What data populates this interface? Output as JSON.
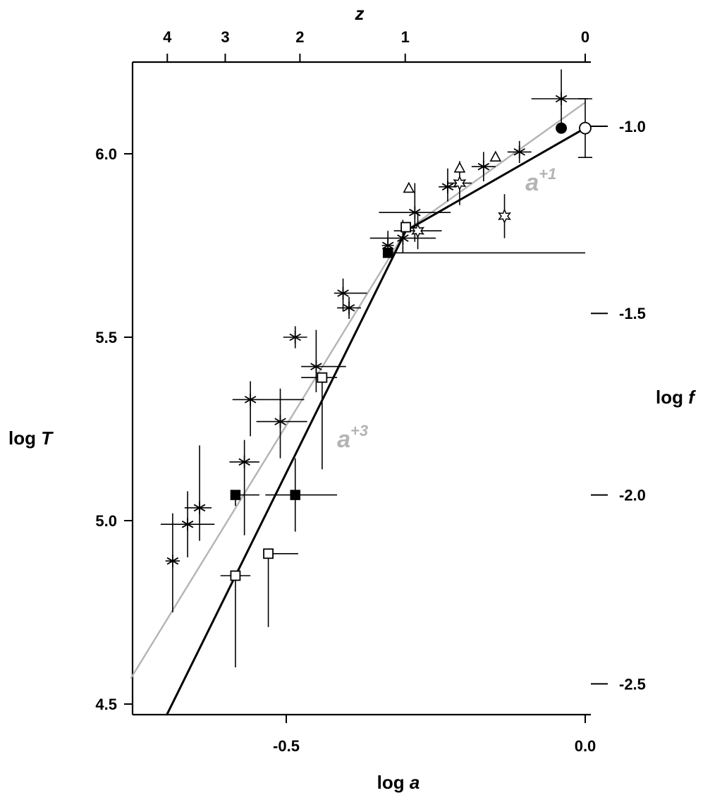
{
  "chart_data": {
    "type": "scatter",
    "axes": {
      "x_bottom": {
        "label_prefix": "log ",
        "label_var": "a",
        "range": [
          -0.78,
          0.0
        ],
        "ticks": [
          {
            "value": -0.5,
            "label": "-0.5"
          },
          {
            "value": 0.0,
            "label": "0.0"
          }
        ]
      },
      "x_top": {
        "label": "z",
        "ticks": [
          {
            "value": 4,
            "label": "4"
          },
          {
            "value": 3,
            "label": "3"
          },
          {
            "value": 2,
            "label": "2"
          },
          {
            "value": 1,
            "label": "1"
          },
          {
            "value": 0,
            "label": "0"
          }
        ]
      },
      "y_left": {
        "label_prefix": "log ",
        "label_var": "T",
        "range": [
          4.47,
          6.26
        ],
        "ticks": [
          {
            "value": 4.5,
            "label": "4.5"
          },
          {
            "value": 5.0,
            "label": "5.0"
          },
          {
            "value": 5.5,
            "label": "5.5"
          },
          {
            "value": 6.0,
            "label": "6.0"
          }
        ]
      },
      "y_right": {
        "label_prefix": "log ",
        "label_var": "f",
        "ticks": [
          {
            "value": -1.0,
            "label": "-1.0",
            "logT": 6.075
          },
          {
            "value": -1.5,
            "label": "-1.5",
            "logT": 5.565
          },
          {
            "value": -2.0,
            "label": "-2.0",
            "logT": 5.07
          },
          {
            "value": -2.5,
            "label": "-2.5",
            "logT": 4.555
          }
        ]
      }
    },
    "fits": [
      {
        "name": "black",
        "color": "#000000",
        "points": [
          [
            -0.7,
            4.47
          ],
          [
            -0.3,
            5.79
          ],
          [
            0.0,
            6.07
          ]
        ]
      },
      {
        "name": "grey",
        "color": "#b4b4b4",
        "points": [
          [
            -0.76,
            4.57
          ],
          [
            -0.3,
            5.79
          ],
          [
            0.0,
            6.14
          ]
        ]
      }
    ],
    "fit_labels": [
      {
        "base": "a",
        "sup": "+1",
        "x": -0.1,
        "y": 5.9,
        "color": "#b4b4b4"
      },
      {
        "base": "a",
        "sup": "+3",
        "x": -0.415,
        "y": 5.2,
        "color": "#b4b4b4"
      }
    ],
    "series": [
      {
        "marker": "asterisk",
        "points": [
          {
            "x": -0.69,
            "y": 4.89,
            "xerr": [
              0.012,
              0.012
            ],
            "yerr": [
              0.14,
              0.13
            ]
          },
          {
            "x": -0.665,
            "y": 4.99,
            "xerr": [
              0.045,
              0.045
            ],
            "yerr": [
              0.09,
              0.09
            ]
          },
          {
            "x": -0.645,
            "y": 5.035,
            "xerr": [
              0.025,
              0.02
            ],
            "yerr": [
              0.09,
              0.17
            ]
          },
          {
            "x": -0.57,
            "y": 5.16,
            "xerr": [
              0.025,
              0.025
            ],
            "yerr": [
              0.2,
              0.06
            ]
          },
          {
            "x": -0.56,
            "y": 5.33,
            "xerr": [
              0.03,
              0.09
            ],
            "yerr": [
              0.1,
              0.05
            ]
          },
          {
            "x": -0.51,
            "y": 5.27,
            "xerr": [
              0.04,
              0.045
            ],
            "yerr": [
              0.1,
              0.09
            ]
          },
          {
            "x": -0.485,
            "y": 5.5,
            "xerr": [
              0.02,
              0.02
            ],
            "yerr": [
              0.03,
              0.03
            ]
          },
          {
            "x": -0.45,
            "y": 5.42,
            "xerr": [
              0.025,
              0.05
            ],
            "yerr": [
              0.07,
              0.1
            ]
          },
          {
            "x": -0.405,
            "y": 5.62,
            "xerr": [
              0.015,
              0.04
            ],
            "yerr": [
              0.05,
              0.04
            ]
          },
          {
            "x": -0.395,
            "y": 5.58,
            "xerr": [
              0.02,
              0.02
            ],
            "yerr": [
              0.03,
              0.03
            ]
          },
          {
            "x": -0.33,
            "y": 5.75,
            "xerr": [
              0.01,
              0.01
            ],
            "yerr": [
              0.02,
              0.04
            ]
          },
          {
            "x": -0.305,
            "y": 5.77,
            "xerr": [
              0.055,
              0.055
            ],
            "yerr": [
              0.04,
              0.05
            ]
          },
          {
            "x": -0.285,
            "y": 5.84,
            "xerr": [
              0.06,
              0.06
            ],
            "yerr": [
              0.08,
              0.08
            ]
          },
          {
            "x": -0.23,
            "y": 5.91,
            "xerr": [
              0.015,
              0.015
            ],
            "yerr": [
              0.04,
              0.05
            ]
          },
          {
            "x": -0.17,
            "y": 5.965,
            "xerr": [
              0.02,
              0.02
            ],
            "yerr": [
              0.04,
              0.04
            ]
          },
          {
            "x": -0.11,
            "y": 6.005,
            "xerr": [
              0.02,
              0.02
            ],
            "yerr": [
              0.03,
              0.03
            ]
          },
          {
            "x": -0.04,
            "y": 6.15,
            "xerr": [
              0.05,
              0.045
            ],
            "yerr": [
              0.08,
              0.08
            ]
          }
        ]
      },
      {
        "marker": "filled-square",
        "points": [
          {
            "x": -0.585,
            "y": 5.07,
            "xerr": [
              0.0,
              0.04
            ],
            "yerr": [
              0.03,
              0.0
            ]
          },
          {
            "x": -0.485,
            "y": 5.07,
            "xerr": [
              0.05,
              0.07
            ],
            "yerr": [
              0.1,
              0.1
            ]
          },
          {
            "x": -0.33,
            "y": 5.73,
            "xerr": [
              0.0,
              0.33
            ],
            "yerr": [
              0.0,
              0.0
            ]
          }
        ]
      },
      {
        "marker": "open-square",
        "points": [
          {
            "x": -0.585,
            "y": 4.85,
            "xerr": [
              0.025,
              0.025
            ],
            "yerr": [
              0.25,
              0.0
            ]
          },
          {
            "x": -0.53,
            "y": 4.91,
            "xerr": [
              0.0,
              0.05
            ],
            "yerr": [
              0.2,
              0.0
            ]
          },
          {
            "x": -0.44,
            "y": 5.39,
            "xerr": [
              0.035,
              0.025
            ],
            "yerr": [
              0.25,
              0.0
            ]
          },
          {
            "x": -0.3,
            "y": 5.8,
            "xerr": [
              0.0,
              0.0
            ],
            "yerr": [
              0.0,
              0.0
            ]
          }
        ]
      },
      {
        "marker": "open-triangle",
        "points": [
          {
            "x": -0.295,
            "y": 5.905,
            "xerr": [
              0.0,
              0.0
            ],
            "yerr": [
              0.01,
              0.01
            ]
          },
          {
            "x": -0.21,
            "y": 5.96,
            "xerr": [
              0.0,
              0.0
            ],
            "yerr": [
              0.01,
              0.01
            ]
          },
          {
            "x": -0.15,
            "y": 5.99,
            "xerr": [
              0.0,
              0.0
            ],
            "yerr": [
              0.01,
              0.01
            ]
          }
        ]
      },
      {
        "marker": "open-star",
        "points": [
          {
            "x": -0.28,
            "y": 5.79,
            "xerr": [
              0.04,
              0.04
            ],
            "yerr": [
              0.05,
              0.05
            ]
          },
          {
            "x": -0.21,
            "y": 5.92,
            "xerr": [
              0.02,
              0.02
            ],
            "yerr": [
              0.06,
              0.06
            ]
          },
          {
            "x": -0.135,
            "y": 5.83,
            "xerr": [
              0.0,
              0.0
            ],
            "yerr": [
              0.06,
              0.06
            ]
          }
        ]
      },
      {
        "marker": "filled-circle",
        "points": [
          {
            "x": -0.04,
            "y": 6.07,
            "xerr": [
              0.0,
              0.0
            ],
            "yerr": [
              0.0,
              0.0
            ]
          }
        ]
      },
      {
        "marker": "open-circle",
        "points": [
          {
            "x": 0.0,
            "y": 6.07,
            "xerr": [
              0.0,
              0.0
            ],
            "yerr": [
              0.08,
              0.08
            ],
            "caps": true
          }
        ]
      }
    ]
  }
}
